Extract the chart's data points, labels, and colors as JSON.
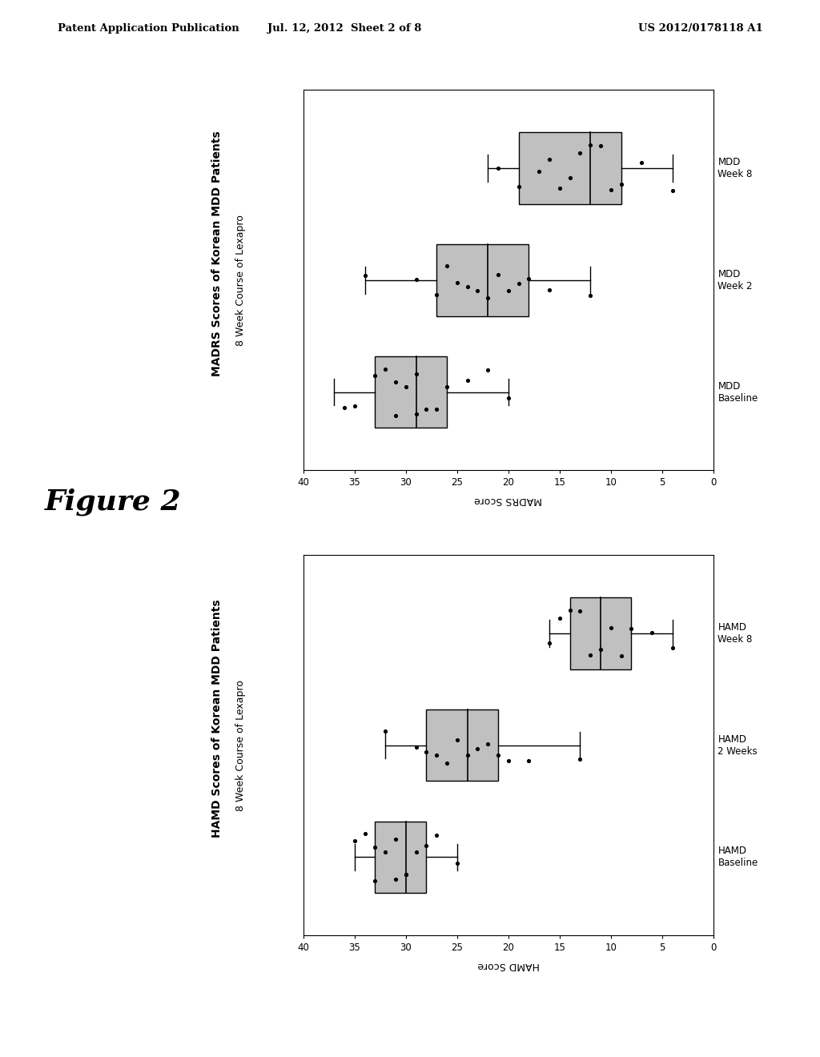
{
  "header_left": "Patent Application Publication",
  "header_center": "Jul. 12, 2012  Sheet 2 of 8",
  "header_right": "US 2012/0178118 A1",
  "figure_label": "Figure 2",
  "plot1_title_line1": "MADRS Scores of Korean MDD Patients",
  "plot1_title_line2": "8 Week Course of Lexapro",
  "plot1_xlabel": "MADRS Score",
  "plot1_categories": [
    "MDD\nBaseline",
    "MDD\nWeek 2",
    "MDD\nWeek 8"
  ],
  "plot1_xlim": [
    0,
    40
  ],
  "plot1_xticks": [
    0,
    5,
    10,
    15,
    20,
    25,
    30,
    35,
    40
  ],
  "plot1_boxes": [
    {
      "whislo": 20,
      "q1": 26,
      "med": 29,
      "q3": 33,
      "whishi": 37
    },
    {
      "whislo": 12,
      "q1": 18,
      "med": 22,
      "q3": 27,
      "whishi": 34
    },
    {
      "whislo": 4,
      "q1": 9,
      "med": 12,
      "q3": 19,
      "whishi": 22
    }
  ],
  "plot1_scatter": [
    [
      20,
      22,
      24,
      26,
      27,
      28,
      29,
      29,
      30,
      31,
      31,
      32,
      33,
      35,
      36
    ],
    [
      12,
      16,
      18,
      19,
      20,
      21,
      22,
      23,
      24,
      25,
      26,
      27,
      29,
      34
    ],
    [
      4,
      7,
      9,
      10,
      11,
      12,
      13,
      14,
      15,
      16,
      17,
      19,
      21
    ]
  ],
  "plot2_title_line1": "HAMD Scores of Korean MDD Patients",
  "plot2_title_line2": "8 Week Course of Lexapro",
  "plot2_xlabel": "HAMD Score",
  "plot2_categories": [
    "HAMD\nBaseline",
    "HAMD\n2 Weeks",
    "HAMD\nWeek 8"
  ],
  "plot2_xlim": [
    0,
    40
  ],
  "plot2_xticks": [
    0,
    5,
    10,
    15,
    20,
    25,
    30,
    35,
    40
  ],
  "plot2_boxes": [
    {
      "whislo": 25,
      "q1": 28,
      "med": 30,
      "q3": 33,
      "whishi": 35
    },
    {
      "whislo": 13,
      "q1": 21,
      "med": 24,
      "q3": 28,
      "whishi": 32
    },
    {
      "whislo": 4,
      "q1": 8,
      "med": 11,
      "q3": 14,
      "whishi": 16
    }
  ],
  "plot2_scatter": [
    [
      25,
      27,
      28,
      29,
      30,
      30,
      31,
      31,
      32,
      33,
      33,
      34,
      35
    ],
    [
      13,
      18,
      20,
      21,
      22,
      23,
      24,
      25,
      26,
      27,
      28,
      29,
      32
    ],
    [
      4,
      6,
      8,
      9,
      10,
      11,
      12,
      13,
      14,
      15,
      16
    ]
  ],
  "box_facecolor": "#c0c0c0",
  "box_edgecolor": "#000000",
  "scatter_color": "#000000",
  "scatter_size": 14,
  "background_color": "#ffffff"
}
